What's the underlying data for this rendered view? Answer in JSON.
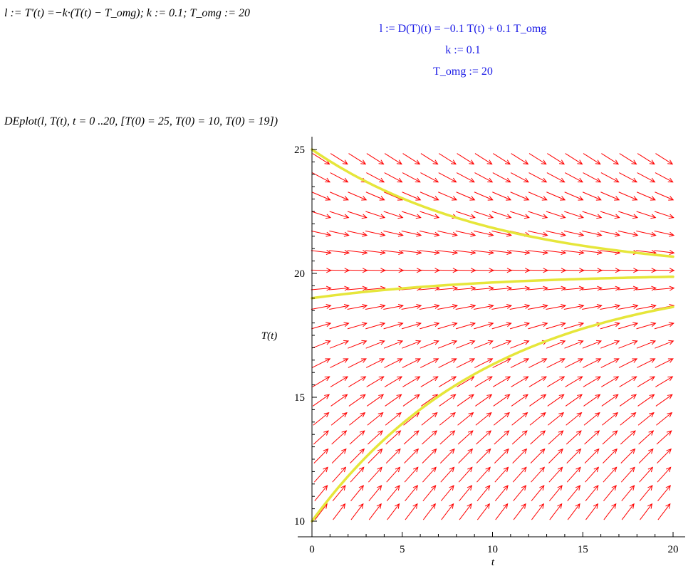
{
  "worksheet": {
    "input1": "l := T'(t) =−k·(T(t) − T_omg); k := 0.1; T_omg := 20",
    "output1": "l := D(T)(t) = −0.1 T(t) + 0.1 T_omg",
    "output2": "k := 0.1",
    "output3": "T_omg := 20",
    "input2": "DEplot(l, T(t), t = 0 ..20, [T(0) = 25, T(0) = 10, T(0) = 19])"
  },
  "colors": {
    "input_text": "#000000",
    "output_text": "#1a1ae6",
    "arrows": "#ff0000",
    "solutions": "#e6e63a",
    "axes": "#000000"
  },
  "chart_data": {
    "type": "line",
    "subtype": "direction-field",
    "xlabel": "t",
    "ylabel": "T(t)",
    "xlim": [
      0,
      20
    ],
    "ylim": [
      10,
      25
    ],
    "xticks": [
      0,
      5,
      10,
      15,
      20
    ],
    "yticks": [
      10,
      15,
      20,
      25
    ],
    "ode": "T' = -0.1*(T - 20)",
    "field_grid": {
      "nx": 20,
      "ny": 20
    },
    "series": [
      {
        "initial": 25,
        "x": [
          0,
          2,
          4,
          6,
          8,
          10,
          12,
          14,
          16,
          18,
          20
        ],
        "y": [
          25,
          24.09,
          23.35,
          22.74,
          22.25,
          21.84,
          21.51,
          21.23,
          21.01,
          20.83,
          20.68
        ]
      },
      {
        "initial": 10,
        "x": [
          0,
          2,
          4,
          6,
          8,
          10,
          12,
          14,
          16,
          18,
          20
        ],
        "y": [
          10,
          11.81,
          13.3,
          14.51,
          15.51,
          16.32,
          16.99,
          17.53,
          17.98,
          18.35,
          18.65
        ]
      },
      {
        "initial": 19,
        "x": [
          0,
          2,
          4,
          6,
          8,
          10,
          12,
          14,
          16,
          18,
          20
        ],
        "y": [
          19,
          19.18,
          19.33,
          19.45,
          19.55,
          19.63,
          19.7,
          19.75,
          19.8,
          19.83,
          19.86
        ]
      }
    ],
    "grid": false,
    "legend": "none"
  }
}
